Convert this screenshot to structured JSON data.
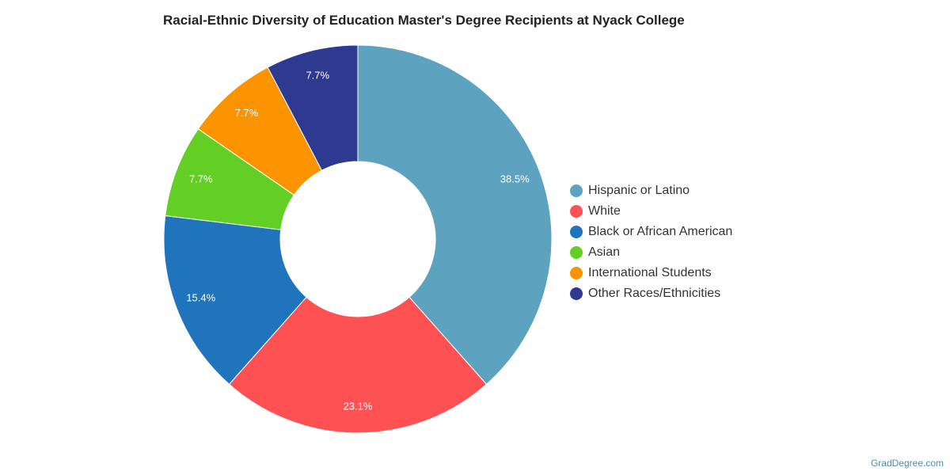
{
  "chart_data": {
    "type": "pie",
    "donut": true,
    "title": "Racial-Ethnic Diversity of Education Master's Degree Recipients at Nyack College",
    "legend_position": "right",
    "slices": [
      {
        "label": "Hispanic or Latino",
        "value": 38.5,
        "value_label": "38.5%",
        "color": "#5da2bf"
      },
      {
        "label": "White",
        "value": 23.1,
        "value_label": "23.1%",
        "color": "#fe5153"
      },
      {
        "label": "Black or African American",
        "value": 15.4,
        "value_label": "15.4%",
        "color": "#1f74bb"
      },
      {
        "label": "Asian",
        "value": 7.7,
        "value_label": "7.7%",
        "color": "#63cf25"
      },
      {
        "label": "International Students",
        "value": 7.7,
        "value_label": "7.7%",
        "color": "#fb9400"
      },
      {
        "label": "Other Races/Ethnicities",
        "value": 7.7,
        "value_label": "7.7%",
        "color": "#2e3990"
      }
    ]
  },
  "watermark": "GradDegree.com"
}
